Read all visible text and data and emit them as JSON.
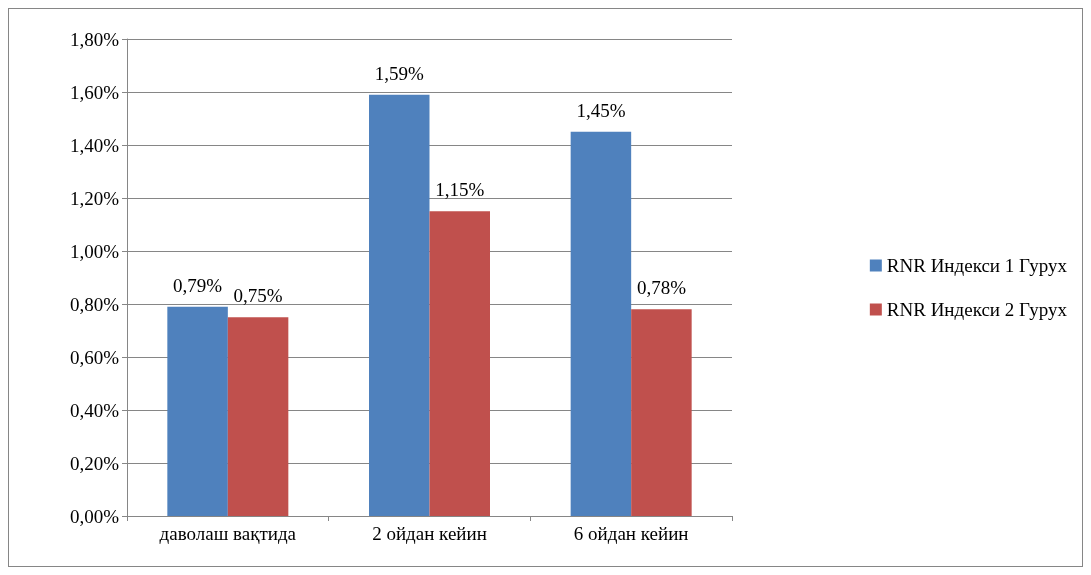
{
  "chart_data": {
    "type": "bar",
    "categories": [
      "даволаш вақтида",
      "2 ойдан кейин",
      "6 ойдан кейин"
    ],
    "series": [
      {
        "name": "RNR Индекси 1 Гурух",
        "color": "#4f81bd",
        "values": [
          0.79,
          1.59,
          1.45
        ],
        "value_labels": [
          "0,79%",
          "1,59%",
          "1,45%"
        ]
      },
      {
        "name": "RNR Индекси 2 Гурух",
        "color": "#c0504d",
        "values": [
          0.75,
          1.15,
          0.78
        ],
        "value_labels": [
          "0,75%",
          "1,15%",
          "0,78%"
        ]
      }
    ],
    "ylim": [
      0,
      1.8
    ],
    "yticks": [
      {
        "value": 0,
        "label": "0,00%"
      },
      {
        "value": 0.2,
        "label": "0,20%"
      },
      {
        "value": 0.4,
        "label": "0,40%"
      },
      {
        "value": 0.6,
        "label": "0,60%"
      },
      {
        "value": 0.8,
        "label": "0,80%"
      },
      {
        "value": 1,
        "label": "1,00%"
      },
      {
        "value": 1.2,
        "label": "1,20%"
      },
      {
        "value": 1.4,
        "label": "1,40%"
      },
      {
        "value": 1.6,
        "label": "1,60%"
      },
      {
        "value": 1.8,
        "label": "1,80%"
      }
    ],
    "grid": "y",
    "legend": "right"
  }
}
